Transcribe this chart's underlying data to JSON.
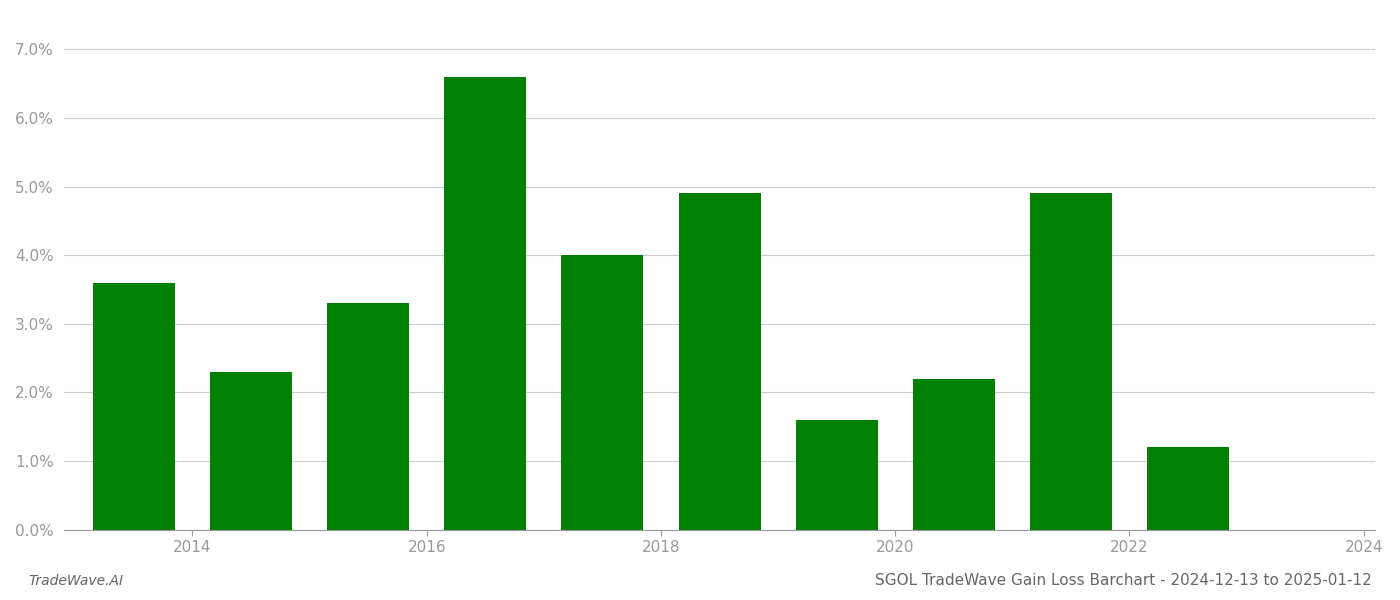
{
  "years": [
    2013,
    2014,
    2015,
    2016,
    2017,
    2018,
    2019,
    2020,
    2021,
    2022,
    2023
  ],
  "values": [
    0.036,
    0.023,
    0.033,
    0.066,
    0.04,
    0.049,
    0.016,
    0.022,
    0.049,
    0.012,
    0.0
  ],
  "bar_color": "#008000",
  "background_color": "#ffffff",
  "title": "SGOL TradeWave Gain Loss Barchart - 2024-12-13 to 2025-01-12",
  "footer_left": "TradeWave.AI",
  "ylim": [
    0,
    0.075
  ],
  "yticks": [
    0.0,
    0.01,
    0.02,
    0.03,
    0.04,
    0.05,
    0.06,
    0.07
  ],
  "grid_color": "#cccccc",
  "tick_color": "#999999",
  "title_color": "#666666",
  "footer_color": "#666666",
  "title_fontsize": 11,
  "footer_fontsize": 10,
  "tick_fontsize": 11,
  "bar_width": 0.7
}
